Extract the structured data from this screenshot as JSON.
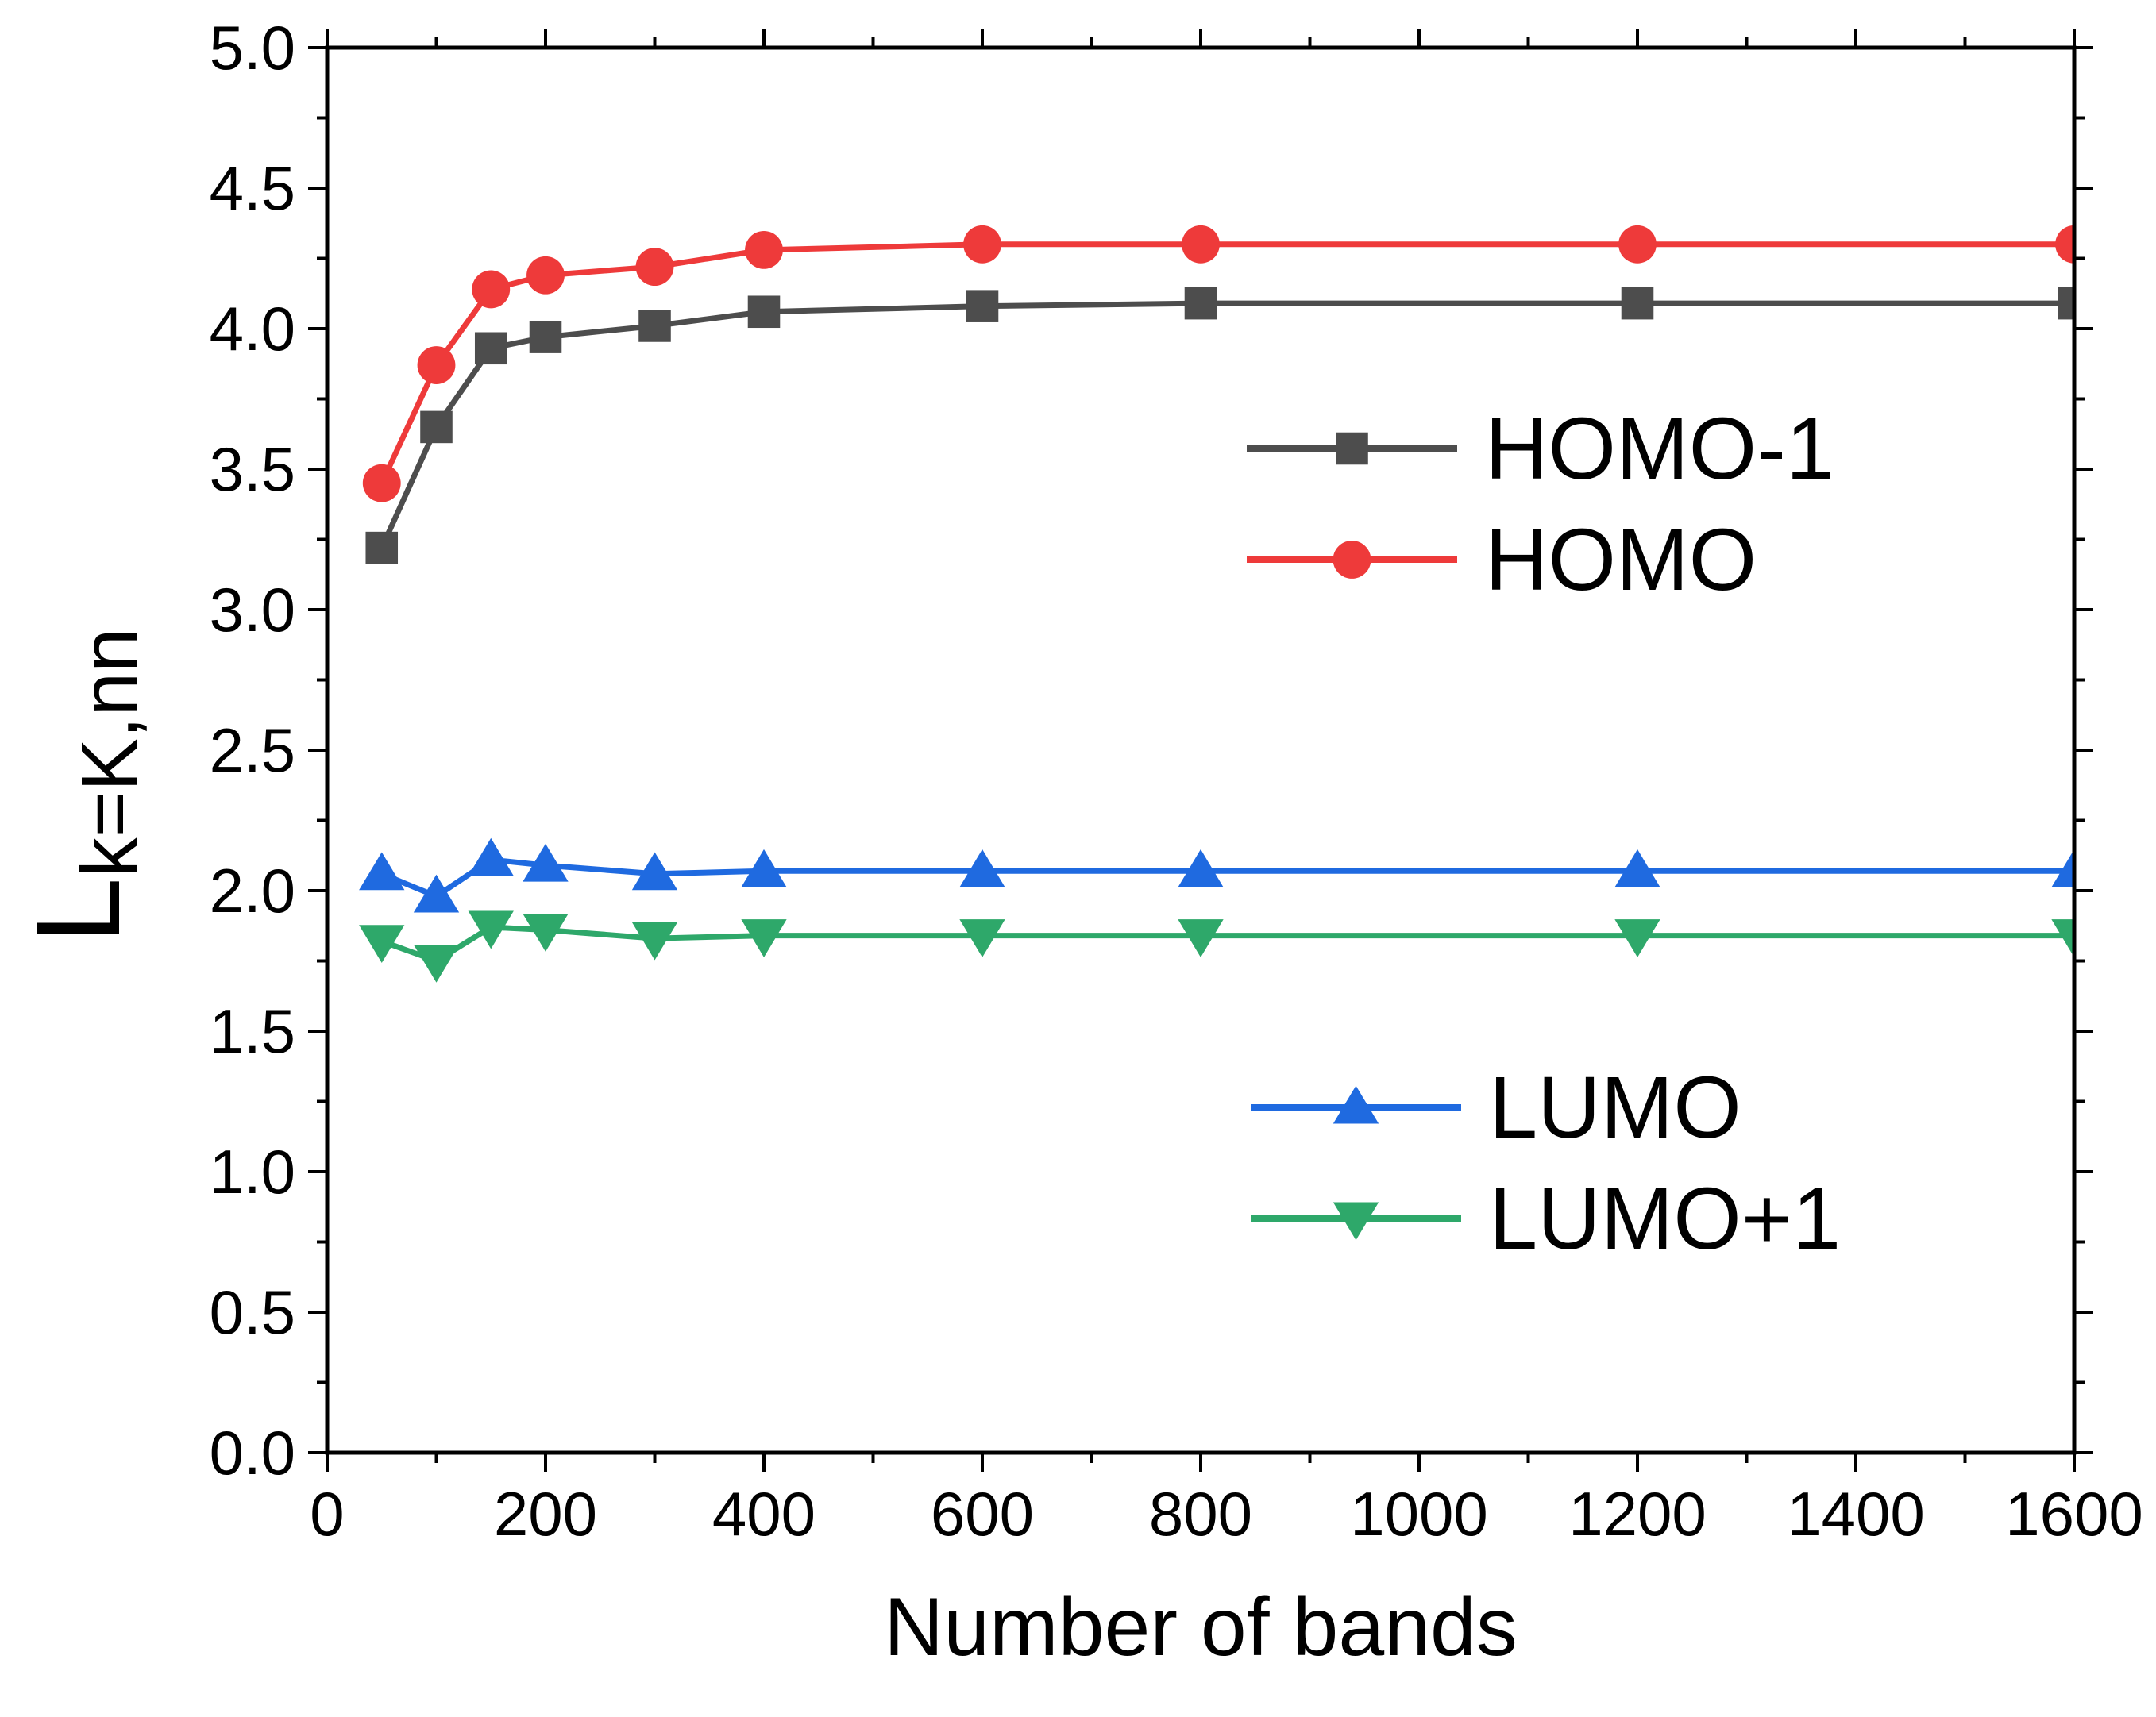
{
  "chart_data": {
    "type": "line",
    "xlabel": "Number of bands",
    "ylabel": "L",
    "ylabel_subscript": "k=K,nn",
    "xlim": [
      0,
      1600
    ],
    "ylim": [
      0.0,
      5.0
    ],
    "xticks": [
      "0",
      "200",
      "400",
      "600",
      "800",
      "1000",
      "1200",
      "1400",
      "1600"
    ],
    "yticks": [
      "0.0",
      "0.5",
      "1.0",
      "1.5",
      "2.0",
      "2.5",
      "3.0",
      "3.5",
      "4.0",
      "4.5",
      "5.0"
    ],
    "grid": false,
    "x": [
      50,
      100,
      150,
      200,
      300,
      400,
      600,
      800,
      1200,
      1600
    ],
    "series": [
      {
        "name": "HOMO-1",
        "marker": "square",
        "color": "#4d4d4d",
        "values": [
          3.22,
          3.65,
          3.93,
          3.97,
          4.01,
          4.06,
          4.08,
          4.09,
          4.09,
          4.09
        ]
      },
      {
        "name": "HOMO",
        "marker": "circle",
        "color": "#ee3a3a",
        "values": [
          3.45,
          3.87,
          4.14,
          4.19,
          4.22,
          4.28,
          4.3,
          4.3,
          4.3,
          4.3
        ]
      },
      {
        "name": "LUMO",
        "marker": "triangle-up",
        "color": "#1f6ae0",
        "values": [
          2.06,
          1.98,
          2.11,
          2.09,
          2.06,
          2.07,
          2.07,
          2.07,
          2.07,
          2.07
        ]
      },
      {
        "name": "LUMO+1",
        "marker": "triangle-down",
        "color": "#2ea86a",
        "values": [
          1.82,
          1.75,
          1.87,
          1.86,
          1.83,
          1.84,
          1.84,
          1.84,
          1.84,
          1.84
        ]
      }
    ],
    "legend_groups": [
      {
        "placement": "upper-right",
        "series": [
          "HOMO-1",
          "HOMO"
        ]
      },
      {
        "placement": "lower-right",
        "series": [
          "LUMO",
          "LUMO+1"
        ]
      }
    ]
  }
}
